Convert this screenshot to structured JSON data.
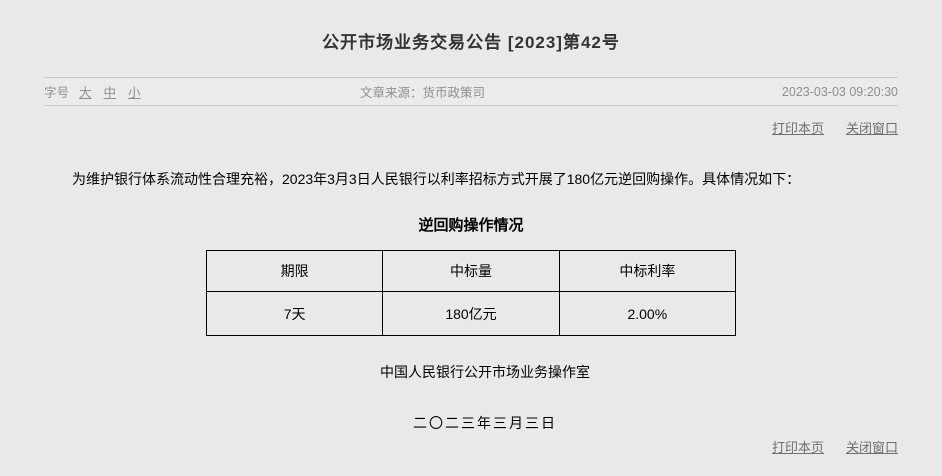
{
  "page": {
    "title": "公开市场业务交易公告  [2023]第42号",
    "meta": {
      "font_size_label": "字号",
      "font_size_options": [
        "大",
        "中",
        "小"
      ],
      "source_label": "文章来源：",
      "source_value": "货币政策司",
      "timestamp": "2023-03-03 09:20:30"
    },
    "actions": {
      "print_label": "打印本页",
      "close_label": "关闭窗口"
    },
    "body_paragraph": "为维护银行体系流动性合理充裕，2023年3月3日人民银行以利率招标方式开展了180亿元逆回购操作。具体情况如下：",
    "table": {
      "title": "逆回购操作情况",
      "headers": [
        "期限",
        "中标量",
        "中标利率"
      ],
      "rows": [
        [
          "7天",
          "180亿元",
          "2.00%"
        ]
      ]
    },
    "signature": "中国人民银行公开市场业务操作室",
    "date": "二〇二三年三月三日",
    "colors": {
      "background": "#e9e9e9",
      "meta_text": "#8f8f8f",
      "link_text": "#6f6f6f",
      "title_text": "#333333",
      "body_text": "#000000",
      "table_border": "#000000",
      "divider_line": "#c9c9c9"
    }
  }
}
